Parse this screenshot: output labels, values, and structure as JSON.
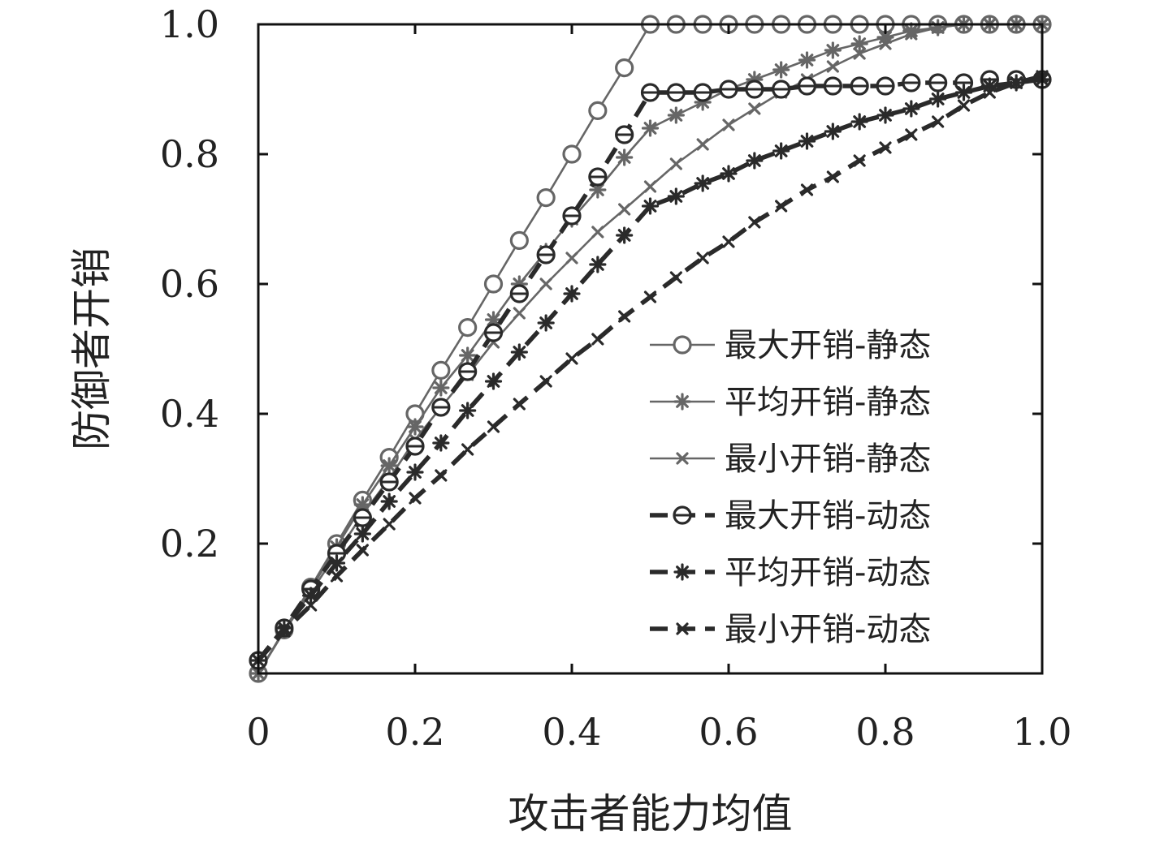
{
  "chart_data": {
    "type": "line",
    "xlabel": "攻击者能力均值",
    "ylabel": "防御者开销",
    "xlim": [
      0,
      1.0
    ],
    "ylim": [
      0,
      1.0
    ],
    "x_ticks": [
      {
        "value": 0,
        "label": "0"
      },
      {
        "value": 0.2,
        "label": "0.2"
      },
      {
        "value": 0.4,
        "label": "0.4"
      },
      {
        "value": 0.6,
        "label": "0.6"
      },
      {
        "value": 0.8,
        "label": "0.8"
      },
      {
        "value": 1.0,
        "label": "1.0"
      }
    ],
    "y_ticks": [
      {
        "value": 0.2,
        "label": "0.2"
      },
      {
        "value": 0.4,
        "label": "0.4"
      },
      {
        "value": 0.6,
        "label": "0.6"
      },
      {
        "value": 0.8,
        "label": "0.8"
      },
      {
        "value": 1.0,
        "label": "1.0"
      }
    ],
    "legend_position": "lower-right",
    "grid": false,
    "series": [
      {
        "name": "最大开销-静态",
        "marker": "circle",
        "line": "solid",
        "color": "#666666",
        "x": [
          0,
          0.033,
          0.067,
          0.1,
          0.133,
          0.167,
          0.2,
          0.233,
          0.267,
          0.3,
          0.333,
          0.367,
          0.4,
          0.433,
          0.467,
          0.5,
          0.533,
          0.567,
          0.6,
          0.633,
          0.667,
          0.7,
          0.733,
          0.767,
          0.8,
          0.833,
          0.867,
          0.9,
          0.933,
          0.967,
          1.0
        ],
        "y": [
          0.0,
          0.067,
          0.133,
          0.2,
          0.267,
          0.333,
          0.4,
          0.467,
          0.533,
          0.6,
          0.667,
          0.733,
          0.8,
          0.867,
          0.933,
          1.0,
          1.0,
          1.0,
          1.0,
          1.0,
          1.0,
          1.0,
          1.0,
          1.0,
          1.0,
          1.0,
          1.0,
          1.0,
          1.0,
          1.0,
          1.0
        ]
      },
      {
        "name": "平均开销-静态",
        "marker": "star",
        "line": "solid",
        "color": "#666666",
        "x": [
          0,
          0.033,
          0.067,
          0.1,
          0.133,
          0.167,
          0.2,
          0.233,
          0.267,
          0.3,
          0.333,
          0.367,
          0.4,
          0.433,
          0.467,
          0.5,
          0.533,
          0.567,
          0.6,
          0.633,
          0.667,
          0.7,
          0.733,
          0.767,
          0.8,
          0.833,
          0.867,
          0.9,
          0.933,
          0.967,
          1.0
        ],
        "y": [
          0.0,
          0.066,
          0.13,
          0.195,
          0.26,
          0.32,
          0.38,
          0.44,
          0.49,
          0.545,
          0.6,
          0.65,
          0.7,
          0.745,
          0.795,
          0.84,
          0.86,
          0.88,
          0.9,
          0.915,
          0.93,
          0.945,
          0.96,
          0.97,
          0.98,
          0.99,
          0.995,
          1.0,
          1.0,
          1.0,
          1.0
        ]
      },
      {
        "name": "最小开销-静态",
        "marker": "cross",
        "line": "solid",
        "color": "#666666",
        "x": [
          0,
          0.033,
          0.067,
          0.1,
          0.133,
          0.167,
          0.2,
          0.233,
          0.267,
          0.3,
          0.333,
          0.367,
          0.4,
          0.433,
          0.467,
          0.5,
          0.533,
          0.567,
          0.6,
          0.633,
          0.667,
          0.7,
          0.733,
          0.767,
          0.8,
          0.833,
          0.867,
          0.9,
          0.933,
          0.967,
          1.0
        ],
        "y": [
          0.0,
          0.065,
          0.125,
          0.185,
          0.245,
          0.3,
          0.36,
          0.41,
          0.46,
          0.51,
          0.555,
          0.6,
          0.64,
          0.68,
          0.715,
          0.75,
          0.785,
          0.815,
          0.845,
          0.87,
          0.895,
          0.915,
          0.935,
          0.955,
          0.97,
          0.985,
          0.995,
          1.0,
          1.0,
          1.0,
          1.0
        ]
      },
      {
        "name": "最大开销-动态",
        "marker": "circle-bar",
        "line": "dashed",
        "color": "#2a2a2a",
        "x": [
          0,
          0.033,
          0.067,
          0.1,
          0.133,
          0.167,
          0.2,
          0.233,
          0.267,
          0.3,
          0.333,
          0.367,
          0.4,
          0.433,
          0.467,
          0.5,
          0.533,
          0.567,
          0.6,
          0.633,
          0.667,
          0.7,
          0.733,
          0.767,
          0.8,
          0.833,
          0.867,
          0.9,
          0.933,
          0.967,
          1.0
        ],
        "y": [
          0.02,
          0.07,
          0.13,
          0.185,
          0.24,
          0.295,
          0.35,
          0.41,
          0.465,
          0.525,
          0.585,
          0.645,
          0.705,
          0.765,
          0.83,
          0.895,
          0.895,
          0.895,
          0.9,
          0.9,
          0.9,
          0.905,
          0.905,
          0.905,
          0.905,
          0.91,
          0.91,
          0.91,
          0.915,
          0.915,
          0.915
        ]
      },
      {
        "name": "平均开销-动态",
        "marker": "star",
        "line": "dashed",
        "color": "#2a2a2a",
        "x": [
          0,
          0.033,
          0.067,
          0.1,
          0.133,
          0.167,
          0.2,
          0.233,
          0.267,
          0.3,
          0.333,
          0.367,
          0.4,
          0.433,
          0.467,
          0.5,
          0.533,
          0.567,
          0.6,
          0.633,
          0.667,
          0.7,
          0.733,
          0.767,
          0.8,
          0.833,
          0.867,
          0.9,
          0.933,
          0.967,
          1.0
        ],
        "y": [
          0.02,
          0.07,
          0.12,
          0.17,
          0.215,
          0.265,
          0.31,
          0.355,
          0.405,
          0.45,
          0.495,
          0.54,
          0.585,
          0.63,
          0.675,
          0.72,
          0.735,
          0.755,
          0.77,
          0.79,
          0.805,
          0.82,
          0.835,
          0.85,
          0.86,
          0.87,
          0.885,
          0.895,
          0.905,
          0.91,
          0.915
        ]
      },
      {
        "name": "最小开销-动态",
        "marker": "cross",
        "line": "dashed",
        "color": "#2a2a2a",
        "x": [
          0,
          0.033,
          0.067,
          0.1,
          0.133,
          0.167,
          0.2,
          0.233,
          0.267,
          0.3,
          0.333,
          0.367,
          0.4,
          0.433,
          0.467,
          0.5,
          0.533,
          0.567,
          0.6,
          0.633,
          0.667,
          0.7,
          0.733,
          0.767,
          0.8,
          0.833,
          0.867,
          0.9,
          0.933,
          0.967,
          1.0
        ],
        "y": [
          0.02,
          0.065,
          0.105,
          0.15,
          0.19,
          0.23,
          0.27,
          0.305,
          0.345,
          0.38,
          0.415,
          0.45,
          0.485,
          0.515,
          0.55,
          0.58,
          0.61,
          0.64,
          0.665,
          0.695,
          0.72,
          0.745,
          0.765,
          0.79,
          0.81,
          0.83,
          0.85,
          0.875,
          0.895,
          0.91,
          0.92
        ]
      }
    ]
  }
}
